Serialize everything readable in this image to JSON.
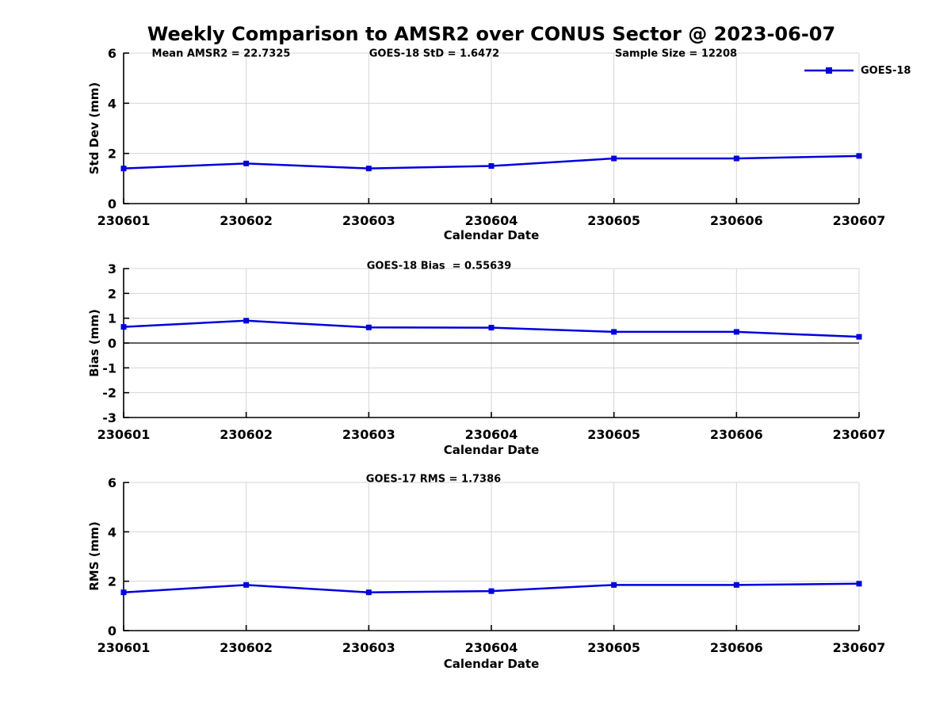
{
  "title": "Weekly Comparison to AMSR2 over CONUS Sector @ 2023-06-07",
  "colors": {
    "series": "#0000dd",
    "grid": "#d6d6d6",
    "axis": "#000000",
    "text": "#000000"
  },
  "legend": {
    "label": "GOES-18",
    "marker": "filled-square",
    "position": "top-right-outside"
  },
  "chart_data": [
    {
      "type": "line",
      "id": "stddev",
      "annotations": [
        "Mean AMSR2 = 22.7325",
        "GOES-18 StD = 1.6472",
        "Sample Size = 12208"
      ],
      "categories": [
        "230601",
        "230602",
        "230603",
        "230604",
        "230605",
        "230606",
        "230607"
      ],
      "series": [
        {
          "name": "GOES-18",
          "color": "#0000dd",
          "marker": "square",
          "values": [
            1.4,
            1.6,
            1.4,
            1.5,
            1.8,
            1.8,
            1.9
          ]
        }
      ],
      "xlabel": "Calendar Date",
      "ylabel": "Std Dev (mm)",
      "ylim": [
        0,
        6
      ],
      "yticks": [
        0,
        2,
        4,
        6
      ],
      "grid": true,
      "zero_line": false
    },
    {
      "type": "line",
      "id": "bias",
      "annotations": [
        "GOES-18 Bias  = 0.55639"
      ],
      "categories": [
        "230601",
        "230602",
        "230603",
        "230604",
        "230605",
        "230606",
        "230607"
      ],
      "series": [
        {
          "name": "GOES-18",
          "color": "#0000dd",
          "marker": "square",
          "values": [
            0.65,
            0.9,
            0.63,
            0.62,
            0.45,
            0.45,
            0.25
          ]
        }
      ],
      "xlabel": "Calendar Date",
      "ylabel": "Bias (mm)",
      "ylim": [
        -3,
        3
      ],
      "yticks": [
        -3,
        -2,
        -1,
        0,
        1,
        2,
        3
      ],
      "grid": true,
      "zero_line": true
    },
    {
      "type": "line",
      "id": "rms",
      "annotations": [
        "GOES-17 RMS = 1.7386"
      ],
      "categories": [
        "230601",
        "230602",
        "230603",
        "230604",
        "230605",
        "230606",
        "230607"
      ],
      "series": [
        {
          "name": "GOES-18",
          "color": "#0000dd",
          "marker": "square",
          "values": [
            1.55,
            1.85,
            1.55,
            1.6,
            1.85,
            1.85,
            1.9
          ]
        }
      ],
      "xlabel": "Calendar Date",
      "ylabel": "RMS (mm)",
      "ylim": [
        0,
        6
      ],
      "yticks": [
        0,
        2,
        4,
        6
      ],
      "grid": true,
      "zero_line": false
    }
  ]
}
